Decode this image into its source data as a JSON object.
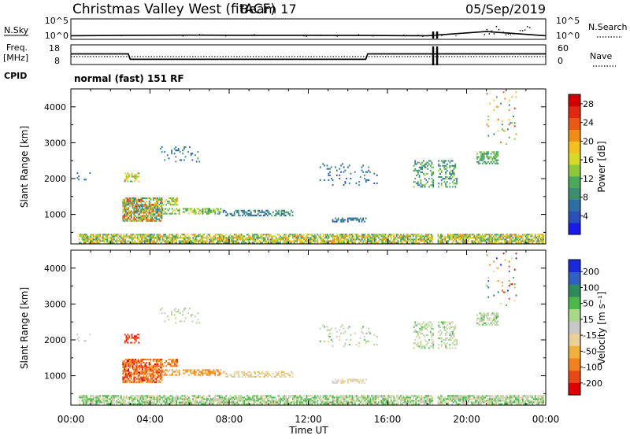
{
  "header": {
    "site": "Christmas Valley West (fitACF)",
    "beam": "Beam 17",
    "date": "05/Sep/2019"
  },
  "small_panels": {
    "nsky_label": "N.Sky",
    "nsearch_label": "N.Search",
    "freq_label_1": "Freq.",
    "freq_label_2": "[MHz]",
    "nave_label": "Nave",
    "cpid_label": "CPID",
    "cpid_text": "normal (fast) 151 RF",
    "noise_ticks_left": [
      "10^5",
      "10^0"
    ],
    "noise_ticks_right": [
      "10^5",
      "10^0"
    ],
    "freq_ticks": [
      "18",
      "8"
    ],
    "nave_ticks": [
      "60",
      "0"
    ]
  },
  "chart_data": {
    "type": "heatmap",
    "x_axis": {
      "label": "Time UT",
      "ticks": [
        "00:00",
        "04:00",
        "08:00",
        "12:00",
        "16:00",
        "20:00",
        "00:00"
      ],
      "range_hours": [
        0,
        24
      ]
    },
    "y_axis": {
      "label": "Slant Range [km]",
      "ticks": [
        1000,
        2000,
        3000,
        4000
      ],
      "range_km": [
        180,
        4500
      ]
    },
    "power_colorbar": {
      "label": "Power [dB]",
      "ticks": [
        "4",
        "8",
        "12",
        "16",
        "20",
        "24",
        "28"
      ],
      "range": [
        0,
        30
      ],
      "colors": [
        "#1a1ae6",
        "#2b4fb8",
        "#2e6fa3",
        "#3d8c74",
        "#4aa85a",
        "#8cc83c",
        "#d6d82a",
        "#f4c020",
        "#f08c18",
        "#e85a14",
        "#e02a10",
        "#d00000"
      ]
    },
    "velocity_colorbar": {
      "label": "Velocity [m s⁻¹]",
      "ticks": [
        "200",
        "100",
        "50",
        "15",
        "-15",
        "-50",
        "-100",
        "-200"
      ],
      "colors": [
        "#1a2ad8",
        "#3060c0",
        "#2e8a5a",
        "#4cb84a",
        "#a8d888",
        "#c8c8c8",
        "#e8d098",
        "#f0b040",
        "#f08020",
        "#e84818",
        "#e00000"
      ]
    },
    "noise_series": {
      "x_hours": [
        0,
        3,
        6,
        9,
        12,
        15,
        18,
        21,
        24
      ],
      "y_log": [
        0.6,
        0.7,
        0.75,
        0.7,
        0.7,
        0.65,
        0.6,
        1.8,
        0.6
      ]
    },
    "freq_series": {
      "x_hours": [
        0,
        2.9,
        3.0,
        14.9,
        15.0,
        24
      ],
      "y_mhz": [
        13.5,
        13.5,
        10.2,
        10.2,
        13.5,
        13.5
      ]
    },
    "nave_series": {
      "x_hours": [
        0,
        24
      ],
      "y": [
        23,
        23
      ]
    },
    "gap_hours": [
      18.3,
      18.5
    ],
    "echo_regions": [
      {
        "t0": 0.4,
        "t1": 23.9,
        "r0": 190,
        "r1": 420,
        "pw": [
          8,
          22
        ],
        "v": [
          -30,
          40
        ],
        "d": 0.75
      },
      {
        "t0": 2.6,
        "t1": 4.6,
        "r0": 800,
        "r1": 1450,
        "pw": [
          6,
          26
        ],
        "v": [
          -220,
          -60
        ],
        "d": 0.8
      },
      {
        "t0": 4.3,
        "t1": 5.4,
        "r0": 1250,
        "r1": 1450,
        "pw": [
          10,
          20
        ],
        "v": [
          -200,
          -80
        ],
        "d": 0.55
      },
      {
        "t0": 4.6,
        "t1": 7.6,
        "r0": 1000,
        "r1": 1150,
        "pw": [
          8,
          18
        ],
        "v": [
          -150,
          -60
        ],
        "d": 0.5
      },
      {
        "t0": 7.6,
        "t1": 11.2,
        "r0": 950,
        "r1": 1120,
        "pw": [
          4,
          12
        ],
        "v": [
          -60,
          -10
        ],
        "d": 0.45
      },
      {
        "t0": 13.2,
        "t1": 15.0,
        "r0": 780,
        "r1": 880,
        "pw": [
          4,
          10
        ],
        "v": [
          -40,
          -5
        ],
        "d": 0.5
      },
      {
        "t0": 2.7,
        "t1": 3.4,
        "r0": 1900,
        "r1": 2150,
        "pw": [
          8,
          22
        ],
        "v": [
          -220,
          -150
        ],
        "d": 0.5
      },
      {
        "t0": 4.5,
        "t1": 6.5,
        "r0": 2450,
        "r1": 2900,
        "pw": [
          4,
          10
        ],
        "v": [
          -10,
          10
        ],
        "d": 0.2
      },
      {
        "t0": 17.3,
        "t1": 19.5,
        "r0": 1750,
        "r1": 2500,
        "pw": [
          6,
          14
        ],
        "v": [
          -20,
          20
        ],
        "d": 0.35
      },
      {
        "t0": 20.5,
        "t1": 21.6,
        "r0": 2400,
        "r1": 2750,
        "pw": [
          8,
          14
        ],
        "v": [
          -20,
          20
        ],
        "d": 0.5
      },
      {
        "t0": 12.5,
        "t1": 15.5,
        "r0": 1800,
        "r1": 2400,
        "pw": [
          4,
          8
        ],
        "v": [
          -20,
          20
        ],
        "d": 0.08
      },
      {
        "t0": 21.0,
        "t1": 22.5,
        "r0": 2900,
        "r1": 4400,
        "pw": [
          6,
          26
        ],
        "v": [
          -220,
          220
        ],
        "d": 0.06
      },
      {
        "t0": 0.3,
        "t1": 1.0,
        "r0": 1950,
        "r1": 2150,
        "pw": [
          4,
          8
        ],
        "v": [
          -10,
          10
        ],
        "d": 0.15
      }
    ]
  }
}
